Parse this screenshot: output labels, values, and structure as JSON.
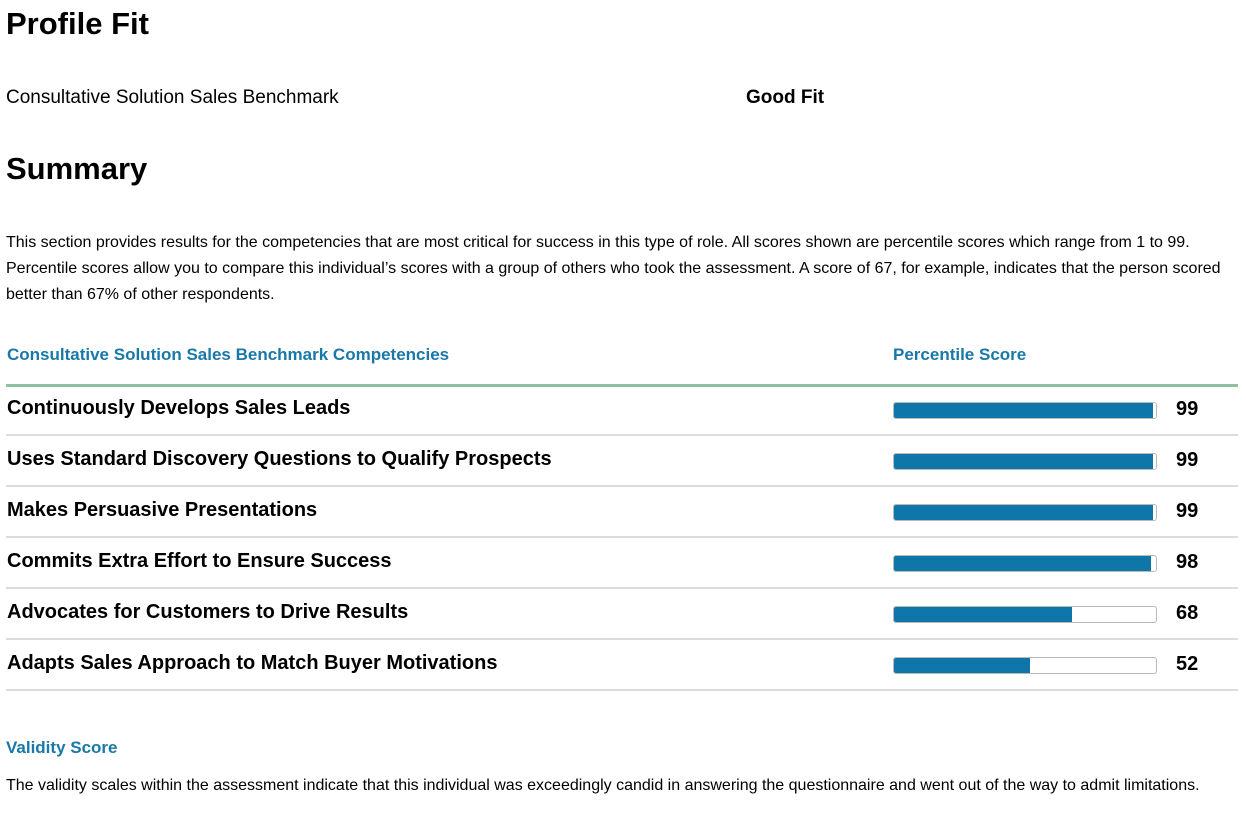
{
  "profile_fit": {
    "title": "Profile Fit",
    "benchmark": "Consultative Solution Sales Benchmark",
    "result": "Good Fit"
  },
  "summary": {
    "title": "Summary",
    "description": "This section provides results for the competencies that are most critical for success in this type of role. All scores shown are percentile scores which range from 1 to 99. Percentile scores allow you to compare this individual’s scores with a group of others who took the assessment. A score of 67, for example, indicates that the person scored better than 67% of other respondents."
  },
  "table": {
    "competency_header": "Consultative Solution Sales Benchmark Competencies",
    "score_header": "Percentile Score",
    "bar_color": "#0e76a8",
    "rows": [
      {
        "label": "Continuously Develops Sales Leads",
        "score": 99
      },
      {
        "label": "Uses Standard Discovery Questions to Qualify Prospects",
        "score": 99
      },
      {
        "label": "Makes Persuasive Presentations",
        "score": 99
      },
      {
        "label": "Commits Extra Effort to Ensure Success",
        "score": 98
      },
      {
        "label": "Advocates for Customers to Drive Results",
        "score": 68
      },
      {
        "label": "Adapts Sales Approach to Match Buyer Motivations",
        "score": 52
      }
    ]
  },
  "validity": {
    "title": "Validity Score",
    "description": "The validity scales within the assessment indicate that this individual was exceedingly candid in answering the questionnaire and went out of the way to admit limitations."
  }
}
